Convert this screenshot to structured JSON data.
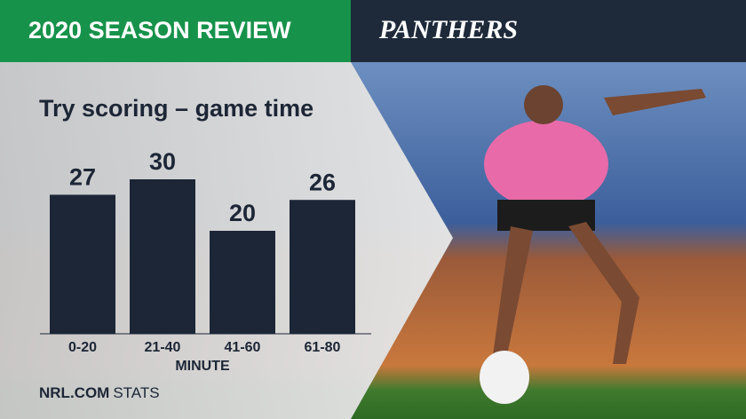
{
  "header": {
    "title": "2020 SEASON REVIEW",
    "logo": "PANTHERS"
  },
  "chart_data": {
    "type": "bar",
    "title": "Try scoring – game time",
    "categories": [
      "0-20",
      "21-40",
      "41-60",
      "61-80"
    ],
    "values": [
      27,
      30,
      20,
      26
    ],
    "color": "#1c2636",
    "x_label": "MINUTE"
  },
  "footer": {
    "brand": "NRL.COM",
    "suffix": "STATS"
  }
}
